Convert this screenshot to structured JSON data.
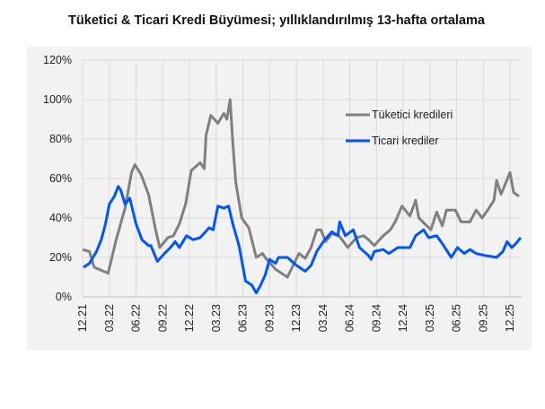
{
  "chart_data": {
    "type": "line",
    "title": "Tüketici & Ticari Kredi Büyümesi; yıllıklandırılmış  13-hafta ortalama",
    "xlabel": "",
    "ylabel": "",
    "ylim": [
      0,
      120
    ],
    "y_ticks": [
      "0%",
      "20%",
      "40%",
      "60%",
      "80%",
      "100%",
      "120%"
    ],
    "y_tick_values": [
      0,
      20,
      40,
      60,
      80,
      100,
      120
    ],
    "x_ticks": [
      "12.21",
      "03.22",
      "06.22",
      "09.22",
      "12.22",
      "03.23",
      "06.23",
      "09.23",
      "12.23",
      "03.24",
      "06.24",
      "09.24",
      "12.24",
      "03.25",
      "06.25",
      "09.25",
      "12.25"
    ],
    "x_tick_dates": [
      "2021-12-01",
      "2022-03-01",
      "2022-06-01",
      "2022-09-01",
      "2022-12-01",
      "2023-03-01",
      "2023-06-01",
      "2023-09-01",
      "2023-12-01",
      "2024-03-01",
      "2024-06-01",
      "2024-09-01",
      "2024-12-01",
      "2025-03-01",
      "2025-06-01",
      "2025-09-01",
      "2025-12-01"
    ],
    "grid": true,
    "legend": "upper-right",
    "series": [
      {
        "name": "Tüketici kredileri",
        "color": "#808080",
        "x": [
          "2021-12-01",
          "2021-12-24",
          "2022-01-10",
          "2022-02-27",
          "2022-03-24",
          "2022-04-24",
          "2022-05-16",
          "2022-05-27",
          "2022-06-18",
          "2022-07-13",
          "2022-08-07",
          "2022-08-21",
          "2022-09-18",
          "2022-10-07",
          "2022-10-27",
          "2022-11-18",
          "2022-12-07",
          "2023-01-07",
          "2023-01-21",
          "2023-01-27",
          "2023-02-13",
          "2023-03-07",
          "2023-03-27",
          "2023-04-07",
          "2023-04-18",
          "2023-04-27",
          "2023-05-07",
          "2023-05-27",
          "2023-06-21",
          "2023-07-16",
          "2023-08-07",
          "2023-08-21",
          "2023-09-21",
          "2023-11-01",
          "2023-12-10",
          "2024-01-01",
          "2024-01-21",
          "2024-02-10",
          "2024-02-24",
          "2024-03-10",
          "2024-04-01",
          "2024-04-24",
          "2024-05-10",
          "2024-05-24",
          "2024-06-24",
          "2024-07-18",
          "2024-08-04",
          "2024-08-24",
          "2024-09-24",
          "2024-10-18",
          "2024-11-04",
          "2024-11-27",
          "2024-12-24",
          "2025-01-13",
          "2025-01-24",
          "2025-03-04",
          "2025-03-24",
          "2025-04-13",
          "2025-04-27",
          "2025-05-27",
          "2025-06-16",
          "2025-07-16",
          "2025-08-07",
          "2025-08-27",
          "2025-09-16",
          "2025-10-07",
          "2025-10-16",
          "2025-11-01",
          "2025-12-01",
          "2025-12-13",
          "2026-01-01"
        ],
        "values": [
          24,
          23,
          15,
          12,
          29,
          45,
          63,
          67,
          62,
          52,
          34,
          25,
          30,
          31,
          37,
          47,
          64,
          68,
          65,
          82,
          92,
          88,
          93,
          90,
          100,
          78,
          58,
          40,
          35,
          20,
          22,
          19,
          14,
          10,
          22,
          19.5,
          25,
          34,
          34,
          28,
          32,
          31,
          28,
          25,
          30,
          31,
          29,
          26,
          31,
          34,
          38,
          46,
          41,
          49,
          40,
          34,
          43,
          36,
          44,
          44,
          38,
          38,
          44,
          40,
          44,
          49,
          59,
          52,
          63,
          53,
          51
        ]
      },
      {
        "name": "Ticari krediler",
        "color": "#0055ff",
        "x": [
          "2021-12-04",
          "2021-12-24",
          "2022-01-18",
          "2022-02-04",
          "2022-02-18",
          "2022-03-01",
          "2022-03-18",
          "2022-04-01",
          "2022-04-10",
          "2022-04-24",
          "2022-05-10",
          "2022-06-01",
          "2022-06-21",
          "2022-07-13",
          "2022-07-21",
          "2022-08-13",
          "2022-09-07",
          "2022-09-27",
          "2022-10-13",
          "2022-10-27",
          "2022-11-21",
          "2022-12-13",
          "2023-01-07",
          "2023-02-07",
          "2023-02-21",
          "2023-03-07",
          "2023-03-27",
          "2023-04-13",
          "2023-04-27",
          "2023-05-18",
          "2023-06-10",
          "2023-07-01",
          "2023-07-16",
          "2023-08-01",
          "2023-08-16",
          "2023-09-01",
          "2023-09-21",
          "2023-10-01",
          "2023-11-01",
          "2023-12-01",
          "2024-01-01",
          "2024-01-21",
          "2024-02-10",
          "2024-03-07",
          "2024-04-01",
          "2024-04-21",
          "2024-04-27",
          "2024-05-16",
          "2024-06-13",
          "2024-07-04",
          "2024-08-04",
          "2024-08-13",
          "2024-08-24",
          "2024-09-24",
          "2024-10-13",
          "2024-11-13",
          "2024-12-24",
          "2025-01-13",
          "2025-02-10",
          "2025-02-27",
          "2025-03-24",
          "2025-04-13",
          "2025-05-13",
          "2025-06-04",
          "2025-06-27",
          "2025-07-16",
          "2025-08-07",
          "2025-09-07",
          "2025-10-16",
          "2025-11-07",
          "2025-11-21",
          "2025-12-07",
          "2025-12-21",
          "2026-01-07"
        ],
        "values": [
          15,
          17,
          23,
          29,
          37,
          47,
          51,
          56,
          54,
          47,
          50,
          37,
          29,
          26,
          26,
          18,
          22,
          25,
          28,
          25,
          31,
          29,
          30,
          35,
          34,
          46,
          45,
          46,
          37,
          26,
          8,
          6,
          2,
          6,
          11,
          19,
          17,
          20,
          20,
          16,
          13,
          16,
          23,
          29,
          33,
          31,
          38,
          31,
          34,
          25,
          21,
          19,
          23,
          24,
          22,
          25,
          25,
          31,
          34,
          30,
          31,
          27,
          20,
          25,
          22,
          24,
          22,
          21,
          20,
          23,
          28,
          25,
          27,
          30
        ]
      }
    ]
  }
}
